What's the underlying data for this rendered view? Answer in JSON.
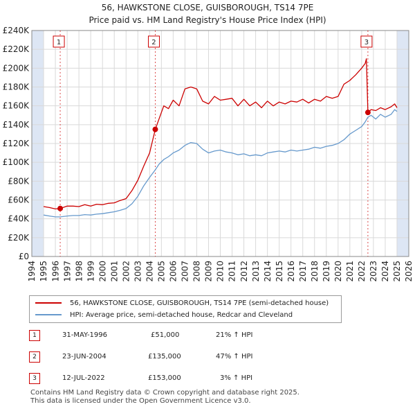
{
  "title_line1": "56, HAWKSTONE CLOSE, GUISBOROUGH, TS14 7PE",
  "title_line2": "Price paid vs. HM Land Registry's House Price Index (HPI)",
  "colors": {
    "property": "#cc0000",
    "hpi": "#6699cc",
    "shade": "#dde6f4",
    "grid": "#d9d9d9",
    "marker": "#cc0000"
  },
  "chart_data": {
    "type": "line",
    "title": "Price paid vs. HM Land Registry's House Price Index (HPI)",
    "xlabel": "",
    "ylabel": "",
    "xlim": [
      1994,
      2026
    ],
    "ylim": [
      0,
      240000
    ],
    "x_ticks": [
      "1994",
      "1995",
      "1996",
      "1997",
      "1998",
      "1999",
      "2000",
      "2001",
      "2002",
      "2003",
      "2004",
      "2005",
      "2006",
      "2007",
      "2008",
      "2009",
      "2010",
      "2011",
      "2012",
      "2013",
      "2014",
      "2015",
      "2016",
      "2017",
      "2018",
      "2019",
      "2020",
      "2021",
      "2022",
      "2023",
      "2024",
      "2025",
      "2026"
    ],
    "y_ticks": [
      {
        "value": 0,
        "label": "£0"
      },
      {
        "value": 20000,
        "label": "£20K"
      },
      {
        "value": 40000,
        "label": "£40K"
      },
      {
        "value": 60000,
        "label": "£60K"
      },
      {
        "value": 80000,
        "label": "£80K"
      },
      {
        "value": 100000,
        "label": "£100K"
      },
      {
        "value": 120000,
        "label": "£120K"
      },
      {
        "value": 140000,
        "label": "£140K"
      },
      {
        "value": 160000,
        "label": "£160K"
      },
      {
        "value": 180000,
        "label": "£180K"
      },
      {
        "value": 200000,
        "label": "£200K"
      },
      {
        "value": 220000,
        "label": "£220K"
      },
      {
        "value": 240000,
        "label": "£240K"
      }
    ],
    "grid": true,
    "shaded_ranges": [
      [
        1994,
        1995
      ],
      [
        2025,
        2026
      ]
    ],
    "series": [
      {
        "name": "56, HAWKSTONE CLOSE, GUISBOROUGH, TS14 7PE (semi-detached house)",
        "color": "#cc0000",
        "x": [
          1995.0,
          1995.5,
          1996.0,
          1996.41,
          1997.0,
          1997.5,
          1998.0,
          1998.5,
          1999.0,
          1999.5,
          2000.0,
          2000.5,
          2001.0,
          2001.5,
          2002.0,
          2002.5,
          2003.0,
          2003.5,
          2004.0,
          2004.48,
          2004.8,
          2005.2,
          2005.6,
          2006.0,
          2006.5,
          2007.0,
          2007.5,
          2008.0,
          2008.5,
          2009.0,
          2009.5,
          2010.0,
          2010.5,
          2011.0,
          2011.5,
          2012.0,
          2012.5,
          2013.0,
          2013.5,
          2014.0,
          2014.5,
          2015.0,
          2015.5,
          2016.0,
          2016.5,
          2017.0,
          2017.5,
          2018.0,
          2018.5,
          2019.0,
          2019.5,
          2020.0,
          2020.5,
          2021.0,
          2021.5,
          2022.0,
          2022.3,
          2022.4,
          2022.53,
          2022.8,
          2023.2,
          2023.6,
          2024.0,
          2024.5,
          2024.8,
          2025.0
        ],
        "values": [
          53000,
          52000,
          50500,
          51000,
          53500,
          53500,
          53000,
          55000,
          53500,
          55500,
          55000,
          56500,
          57000,
          59500,
          61500,
          70000,
          81000,
          96000,
          110000,
          135000,
          146000,
          160000,
          157000,
          166000,
          160000,
          178000,
          180000,
          178000,
          165000,
          162000,
          170000,
          166000,
          167000,
          168000,
          160000,
          167000,
          160000,
          164000,
          158000,
          165000,
          160000,
          164000,
          162000,
          165000,
          164000,
          167000,
          163000,
          167000,
          165000,
          170000,
          168000,
          170000,
          183000,
          187000,
          193000,
          200000,
          205000,
          210000,
          153000,
          156000,
          155000,
          158000,
          156000,
          159000,
          162000,
          158000
        ]
      },
      {
        "name": "HPI: Average price, semi-detached house, Redcar and Cleveland",
        "color": "#6699cc",
        "x": [
          1995.0,
          1995.5,
          1996.0,
          1996.41,
          1997.0,
          1997.5,
          1998.0,
          1998.5,
          1999.0,
          1999.5,
          2000.0,
          2000.5,
          2001.0,
          2001.5,
          2002.0,
          2002.5,
          2003.0,
          2003.5,
          2004.0,
          2004.48,
          2004.8,
          2005.2,
          2005.6,
          2006.0,
          2006.5,
          2007.0,
          2007.5,
          2008.0,
          2008.5,
          2009.0,
          2009.5,
          2010.0,
          2010.5,
          2011.0,
          2011.5,
          2012.0,
          2012.5,
          2013.0,
          2013.5,
          2014.0,
          2014.5,
          2015.0,
          2015.5,
          2016.0,
          2016.5,
          2017.0,
          2017.5,
          2018.0,
          2018.5,
          2019.0,
          2019.5,
          2020.0,
          2020.5,
          2021.0,
          2021.5,
          2022.0,
          2022.3,
          2022.53,
          2022.8,
          2023.2,
          2023.6,
          2024.0,
          2024.5,
          2024.8,
          2025.0
        ],
        "values": [
          44000,
          43000,
          42000,
          42000,
          43000,
          43500,
          43500,
          44500,
          44000,
          45000,
          45500,
          46500,
          47500,
          49000,
          51000,
          56000,
          64000,
          75000,
          84000,
          92000,
          98000,
          103000,
          106000,
          110000,
          113000,
          118000,
          121000,
          120000,
          114000,
          110000,
          112000,
          113000,
          111000,
          110000,
          108000,
          109000,
          107000,
          108000,
          107000,
          110000,
          111000,
          112000,
          111000,
          113000,
          112000,
          113000,
          114000,
          116000,
          115000,
          117000,
          118000,
          120000,
          124000,
          130000,
          134000,
          138000,
          143000,
          148000,
          150000,
          146000,
          151000,
          148000,
          151000,
          156000,
          154000
        ]
      }
    ],
    "sales": [
      {
        "label": "1",
        "x": 1996.41,
        "value": 51000
      },
      {
        "label": "2",
        "x": 2004.48,
        "value": 135000
      },
      {
        "label": "3",
        "x": 2022.53,
        "value": 153000
      }
    ]
  },
  "legend": {
    "property_label": "56, HAWKSTONE CLOSE, GUISBOROUGH, TS14 7PE (semi-detached house)",
    "hpi_label": "HPI: Average price, semi-detached house, Redcar and Cleveland"
  },
  "table": [
    {
      "num": "1",
      "date": "31-MAY-1996",
      "price": "£51,000",
      "hpi": "21% ↑ HPI"
    },
    {
      "num": "2",
      "date": "23-JUN-2004",
      "price": "£135,000",
      "hpi": "47% ↑ HPI"
    },
    {
      "num": "3",
      "date": "12-JUL-2022",
      "price": "£153,000",
      "hpi": "3% ↑ HPI"
    }
  ],
  "footer_line1": "Contains HM Land Registry data © Crown copyright and database right 2025.",
  "footer_line2": "This data is licensed under the Open Government Licence v3.0."
}
